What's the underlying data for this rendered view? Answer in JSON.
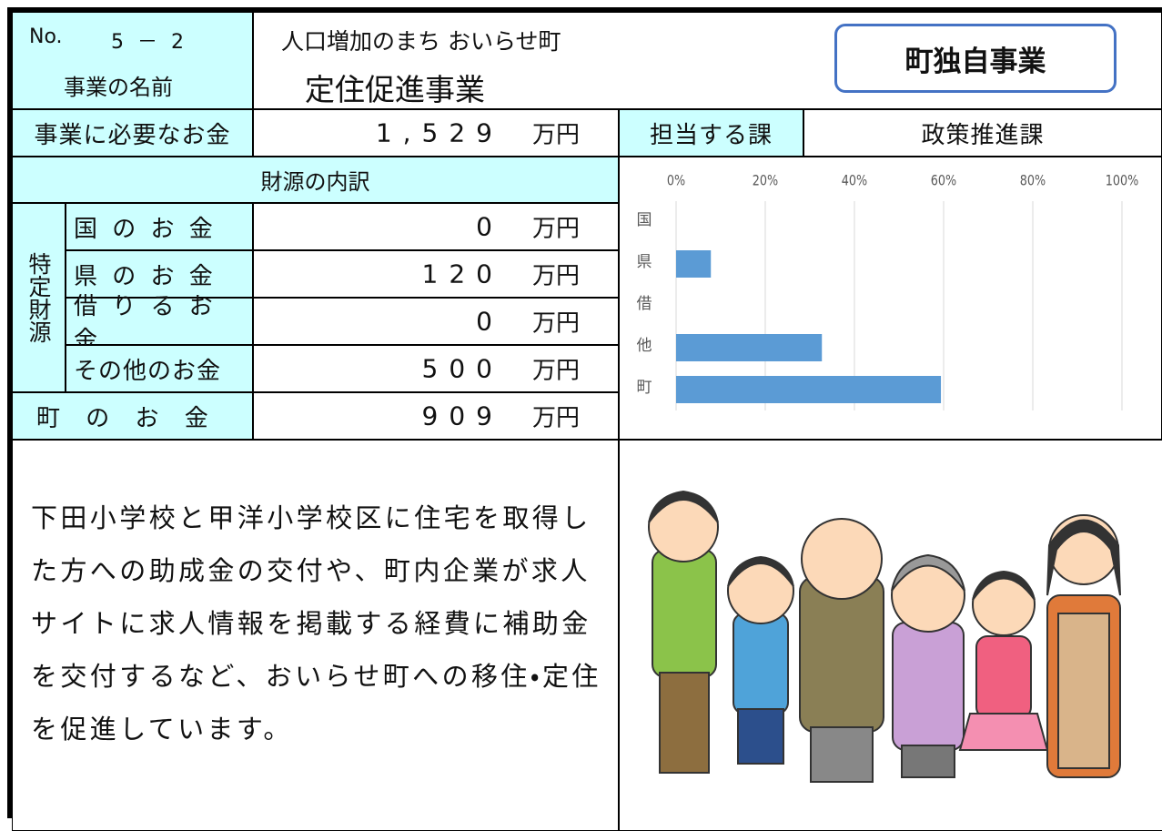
{
  "header": {
    "no_label": "No.",
    "no": "5 － 2",
    "name_label": "事業の名前",
    "subtitle": "人口増加のまち おいらせ町",
    "project_name": "定住促進事業",
    "badge": "町独自事業"
  },
  "cost": {
    "label": "事業に必要なお金",
    "amount": "1,529",
    "unit": "万円"
  },
  "department": {
    "label": "担当する課",
    "name": "政策推進課"
  },
  "funding": {
    "title": "財源の内訳",
    "group_label": "特定財源",
    "rows": [
      {
        "label": "国 の お 金",
        "amount": "0",
        "unit": "万円"
      },
      {
        "label": "県 の お 金",
        "amount": "120",
        "unit": "万円"
      },
      {
        "label": "借 り る お 金",
        "amount": "0",
        "unit": "万円"
      },
      {
        "label": "その他のお金",
        "amount": "500",
        "unit": "万円"
      }
    ],
    "town": {
      "label": "町 の お 金",
      "amount": "909",
      "unit": "万円"
    }
  },
  "description": "下田小学校と甲洋小学校区に住宅を取得した方への助成金の交付や、町内企業が求人サイトに求人情報を掲載する経費に補助金を交付するなど、おいらせ町への移住・定住を促進しています。",
  "chart_data": {
    "type": "bar",
    "orientation": "horizontal",
    "categories": [
      "国",
      "県",
      "借",
      "他",
      "町"
    ],
    "values": [
      0,
      7.8,
      0,
      32.7,
      59.4
    ],
    "color": "#5b9bd5",
    "xlim": [
      0,
      100
    ],
    "xticks": [
      {
        "value": 0,
        "label": "0%"
      },
      {
        "value": 20,
        "label": "20%"
      },
      {
        "value": 40,
        "label": "40%"
      },
      {
        "value": 60,
        "label": "60%"
      },
      {
        "value": 80,
        "label": "80%"
      },
      {
        "value": 100,
        "label": "100%"
      }
    ],
    "grid": true
  }
}
